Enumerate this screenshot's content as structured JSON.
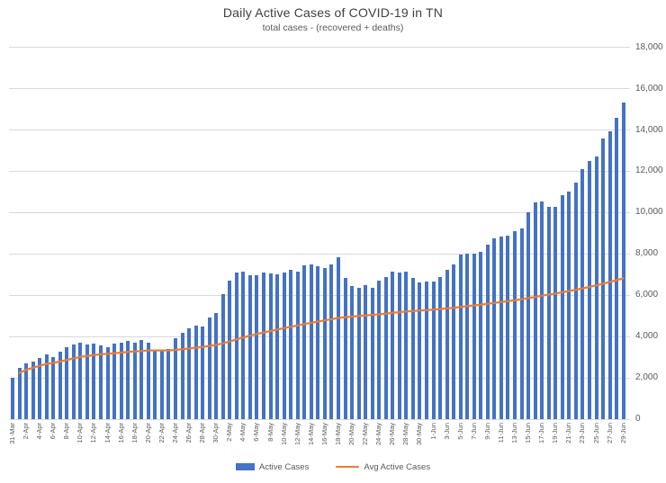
{
  "title": "Daily Active Cases of COVID-19 in TN",
  "subtitle": "total cases - (recovered + deaths)",
  "legend": {
    "position": "bottom",
    "items": [
      {
        "label": "Active Cases",
        "swatch": "bar",
        "color": "#4472C4"
      },
      {
        "label": "Avg Active Cases",
        "swatch": "line",
        "color": "#ED7D31"
      }
    ]
  },
  "colors": {
    "bar": "#4472C4",
    "line": "#ED7D31",
    "gridline": "#D9D9D9",
    "title_text": "#404040",
    "axis_text": "#595959",
    "background": "#FFFFFF"
  },
  "chart_data": {
    "type": "bar",
    "title": "Daily Active Cases of COVID-19 in TN",
    "subtitle": "total cases - (recovered + deaths)",
    "grid": true,
    "legend_position": "bottom",
    "y_axis_side": "right",
    "ylim": [
      0,
      18000
    ],
    "y_tick_step": 2000,
    "y_ticks": [
      "0",
      "2,000",
      "4,000",
      "6,000",
      "8,000",
      "10,000",
      "12,000",
      "14,000",
      "16,000",
      "18,000"
    ],
    "x_label_interval": 2,
    "x_label_rotation": -90,
    "categories": [
      "31-Mar",
      "1-Apr",
      "2-Apr",
      "3-Apr",
      "4-Apr",
      "5-Apr",
      "6-Apr",
      "7-Apr",
      "8-Apr",
      "9-Apr",
      "10-Apr",
      "11-Apr",
      "12-Apr",
      "13-Apr",
      "14-Apr",
      "15-Apr",
      "16-Apr",
      "17-Apr",
      "18-Apr",
      "19-Apr",
      "20-Apr",
      "21-Apr",
      "22-Apr",
      "23-Apr",
      "24-Apr",
      "25-Apr",
      "26-Apr",
      "27-Apr",
      "28-Apr",
      "29-Apr",
      "30-Apr",
      "1-May",
      "2-May",
      "3-May",
      "4-May",
      "5-May",
      "6-May",
      "7-May",
      "8-May",
      "9-May",
      "10-May",
      "11-May",
      "12-May",
      "13-May",
      "14-May",
      "15-May",
      "16-May",
      "17-May",
      "18-May",
      "19-May",
      "20-May",
      "21-May",
      "22-May",
      "23-May",
      "24-May",
      "25-May",
      "26-May",
      "27-May",
      "28-May",
      "29-May",
      "30-May",
      "31-May",
      "1-Jun",
      "2-Jun",
      "3-Jun",
      "4-Jun",
      "5-Jun",
      "6-Jun",
      "7-Jun",
      "8-Jun",
      "9-Jun",
      "10-Jun",
      "11-Jun",
      "12-Jun",
      "13-Jun",
      "14-Jun",
      "15-Jun",
      "16-Jun",
      "17-Jun",
      "18-Jun",
      "19-Jun",
      "20-Jun",
      "21-Jun",
      "22-Jun",
      "23-Jun",
      "24-Jun",
      "25-Jun",
      "26-Jun",
      "27-Jun",
      "28-Jun",
      "29-Jun"
    ],
    "series": [
      {
        "name": "Active Cases",
        "type": "bar",
        "color": "#4472C4",
        "values": [
          2000,
          2470,
          2690,
          2800,
          2950,
          3120,
          3020,
          3280,
          3480,
          3630,
          3700,
          3600,
          3650,
          3550,
          3500,
          3650,
          3700,
          3800,
          3700,
          3850,
          3700,
          3350,
          3300,
          3400,
          3900,
          4200,
          4400,
          4550,
          4500,
          4900,
          5150,
          6050,
          6700,
          7100,
          7150,
          6950,
          6950,
          7100,
          7050,
          7000,
          7100,
          7250,
          7150,
          7450,
          7500,
          7400,
          7300,
          7500,
          7850,
          6850,
          6450,
          6350,
          6500,
          6350,
          6700,
          6900,
          7150,
          7100,
          7150,
          6850,
          6600,
          6650,
          6650,
          6900,
          7250,
          7500,
          7950,
          8000,
          8000,
          8100,
          8450,
          8750,
          8850,
          8900,
          9100,
          9250,
          10000,
          10500,
          10550,
          10300,
          10300,
          10850,
          11000,
          11450,
          12100,
          12500,
          12700,
          13600,
          13950,
          14600,
          15350
        ]
      },
      {
        "name": "Avg Active Cases",
        "type": "line",
        "color": "#ED7D31",
        "derivation": "running mean of Active Cases",
        "line_starts_at_index": 1,
        "values": [
          2000,
          2235,
          2387,
          2490,
          2582,
          2672,
          2721,
          2791,
          2868,
          2944,
          3013,
          3062,
          3107,
          3139,
          3163,
          3193,
          3223,
          3255,
          3278,
          3307,
          3326,
          3327,
          3326,
          3329,
          3352,
          3384,
          3422,
          3462,
          3498,
          3545,
          3596,
          3673,
          3765,
          3863,
          3957,
          4040,
          4119,
          4197,
          4270,
          4339,
          4406,
          4474,
          4536,
          4602,
          4666,
          4726,
          4781,
          4837,
          4899,
          4938,
          4967,
          4994,
          5022,
          5047,
          5077,
          5110,
          5146,
          5179,
          5213,
          5240,
          5262,
          5285,
          5306,
          5331,
          5361,
          5393,
          5431,
          5469,
          5506,
          5543,
          5583,
          5628,
          5672,
          5715,
          5761,
          5807,
          5861,
          5920,
          5979,
          6033,
          6086,
          6144,
          6202,
          6265,
          6333,
          6405,
          6478,
          6558,
          6641,
          6730,
          6824
        ]
      }
    ]
  }
}
